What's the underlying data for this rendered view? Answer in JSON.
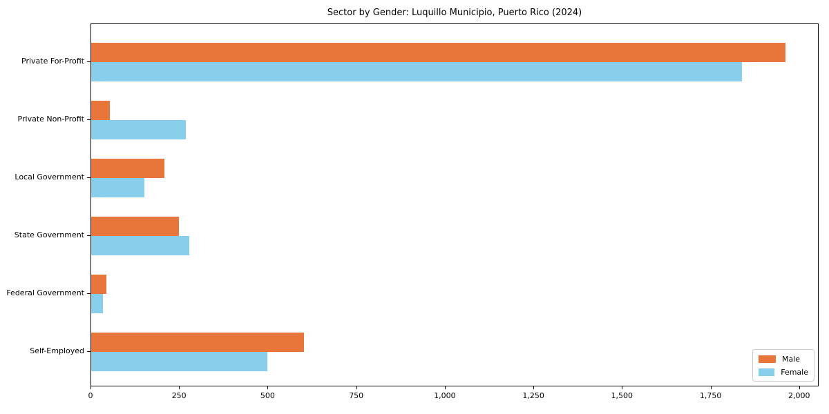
{
  "chart_data": {
    "type": "bar",
    "orientation": "horizontal",
    "title": "Sector by Gender: Luquillo Municipio, Puerto Rico (2024)",
    "categories": [
      "Private For-Profit",
      "Private Non-Profit",
      "Local Government",
      "State Government",
      "Federal Government",
      "Self-Employed"
    ],
    "series": [
      {
        "name": "Male",
        "color": "#E8763A",
        "values": [
          1959,
          53,
          207,
          248,
          43,
          600
        ]
      },
      {
        "name": "Female",
        "color": "#87CEEB",
        "values": [
          1836,
          267,
          150,
          277,
          33,
          497
        ]
      }
    ],
    "xlabel": "",
    "ylabel": "",
    "xlim": [
      0,
      2055
    ],
    "xticks": {
      "values": [
        0,
        250,
        500,
        750,
        1000,
        1250,
        1500,
        1750,
        2000
      ],
      "labels": [
        "0",
        "250",
        "500",
        "750",
        "1,000",
        "1,250",
        "1,500",
        "1,750",
        "2,000"
      ]
    },
    "grid": false,
    "legend": {
      "position": "lower right",
      "entries": [
        "Male",
        "Female"
      ]
    }
  }
}
